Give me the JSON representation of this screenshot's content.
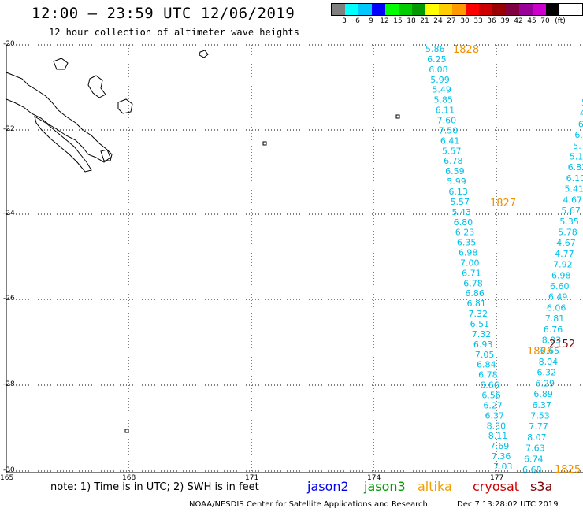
{
  "header": {
    "title": "12:00 – 23:59 UTC 12/06/2019",
    "subtitle": "12 hour collection of altimeter wave heights"
  },
  "legend": {
    "colors": [
      "#7f7f7f",
      "#00ffff",
      "#00c8ff",
      "#0000ff",
      "#00ff00",
      "#00cc00",
      "#009900",
      "#ffff00",
      "#ffcc00",
      "#ff9900",
      "#ff0000",
      "#cc0000",
      "#990000",
      "#800040",
      "#990099",
      "#cc00cc",
      "#000000"
    ],
    "labels": [
      "3",
      "6",
      "9",
      "12",
      "15",
      "18",
      "21",
      "24",
      "27",
      "30",
      "33",
      "36",
      "39",
      "42",
      "45",
      "70",
      "(ft)"
    ]
  },
  "axes": {
    "lat_labels": [
      "-20",
      "-22",
      "-24",
      "-26",
      "-28",
      "-30"
    ],
    "lon_labels": [
      "165",
      "168",
      "171",
      "174",
      "177"
    ]
  },
  "tracks": {
    "track_a": {
      "color": "#00c0e8",
      "values": [
        "5.86",
        "6.25",
        "6.08",
        "5.99",
        "5.49",
        "5.85",
        "6.11",
        "7.60",
        "7.50",
        "6.41",
        "5.57",
        "6.78",
        "6.59",
        "5.99",
        "6.13",
        "5.57",
        "5.43",
        "6.80",
        "6.23",
        "6.35",
        "6.98",
        "7.00",
        "6.71",
        "6.78",
        "6.86",
        "6.81",
        "7.32",
        "6.51",
        "7.32",
        "6.93",
        "7.05",
        "6.84",
        "6.78",
        "6.66",
        "6.56",
        "6.27",
        "6.37",
        "8.30",
        "8.11",
        "7.69",
        "7.36",
        "7.03"
      ]
    },
    "track_b": {
      "color": "#00c0e8",
      "values": [
        "5.",
        "4.",
        "6.",
        "6.7",
        "5.7",
        "5.15",
        "6.82",
        "6.10",
        "5.41",
        "4.67",
        "5.67",
        "5.35",
        "5.78",
        "4.67",
        "4.77",
        "7.92",
        "6.98",
        "6.60",
        "6.49",
        "6.06",
        "7.81",
        "6.76",
        "8.03",
        "6.65",
        "8.04",
        "6.32",
        "6.29",
        "6.89",
        "6.37",
        "7.53",
        "7.77",
        "8.07",
        "7.63",
        "6.74",
        "6.68"
      ]
    }
  },
  "time_marks": [
    {
      "text": "1828",
      "color": "#f09000"
    },
    {
      "text": "1827",
      "color": "#f09000"
    },
    {
      "text": "1826",
      "color": "#f09000"
    },
    {
      "text": "1825",
      "color": "#f09000"
    },
    {
      "text": "2152",
      "color": "#800000"
    }
  ],
  "footer": {
    "note": "note: 1) Time is in UTC; 2) SWH is in feet",
    "satellites": [
      {
        "name": "jason2",
        "color": "#0000ee"
      },
      {
        "name": "jason3",
        "color": "#009900"
      },
      {
        "name": "altika",
        "color": "#f0a000"
      },
      {
        "name": "cryosat",
        "color": "#cc0000"
      },
      {
        "name": "s3a",
        "color": "#800000"
      }
    ],
    "credit": "NOAA/NESDIS Center for Satellite Applications and Research",
    "timestamp": "Dec  7 13:28:02 UTC 2019"
  }
}
